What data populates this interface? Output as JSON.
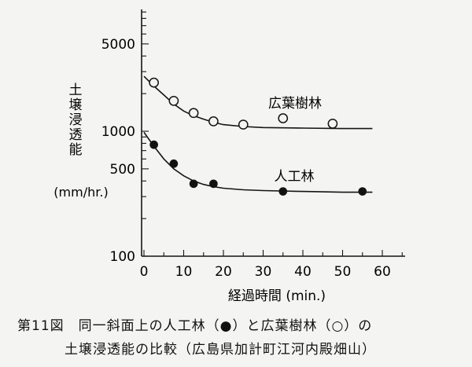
{
  "chart_data": {
    "type": "scatter",
    "xlabel": "経過時間 (min.)",
    "ylabel_lines": [
      "土",
      "壌",
      "浸",
      "透",
      "能"
    ],
    "ylabel_unit": "(mm/hr.)",
    "y_scale": "log",
    "xlim": [
      0,
      60
    ],
    "ylim": [
      100,
      10000
    ],
    "x_ticks": [
      "0",
      "10",
      "20",
      "30",
      "40",
      "50",
      "60"
    ],
    "x_tick_values": [
      0,
      10,
      20,
      30,
      40,
      50,
      60
    ],
    "y_ticks": [
      "100",
      "500",
      "1000",
      "5000"
    ],
    "y_tick_values": [
      100,
      500,
      1000,
      5000
    ],
    "grid": false,
    "series": [
      {
        "name": "広葉樹林",
        "marker": "open-circle",
        "points": [
          {
            "x": 2.5,
            "y": 2450
          },
          {
            "x": 7.5,
            "y": 1750
          },
          {
            "x": 12.5,
            "y": 1400
          },
          {
            "x": 17.5,
            "y": 1200
          },
          {
            "x": 25,
            "y": 1130
          },
          {
            "x": 35,
            "y": 1270
          },
          {
            "x": 47.5,
            "y": 1150
          }
        ],
        "curve": [
          {
            "x": 0,
            "y": 2750
          },
          {
            "x": 2.5,
            "y": 2300
          },
          {
            "x": 5,
            "y": 1950
          },
          {
            "x": 7.5,
            "y": 1650
          },
          {
            "x": 10,
            "y": 1450
          },
          {
            "x": 12.5,
            "y": 1330
          },
          {
            "x": 15,
            "y": 1250
          },
          {
            "x": 17.5,
            "y": 1180
          },
          {
            "x": 20,
            "y": 1130
          },
          {
            "x": 25,
            "y": 1090
          },
          {
            "x": 30,
            "y": 1070
          },
          {
            "x": 40,
            "y": 1060
          },
          {
            "x": 50,
            "y": 1050
          },
          {
            "x": 57.5,
            "y": 1050
          }
        ]
      },
      {
        "name": "人工林",
        "marker": "filled-circle",
        "points": [
          {
            "x": 2.5,
            "y": 780
          },
          {
            "x": 7.5,
            "y": 550
          },
          {
            "x": 12.5,
            "y": 380
          },
          {
            "x": 17.5,
            "y": 380
          },
          {
            "x": 35,
            "y": 330
          },
          {
            "x": 55,
            "y": 330
          }
        ],
        "curve": [
          {
            "x": 0,
            "y": 980
          },
          {
            "x": 2.5,
            "y": 760
          },
          {
            "x": 5,
            "y": 600
          },
          {
            "x": 7.5,
            "y": 500
          },
          {
            "x": 10,
            "y": 440
          },
          {
            "x": 12.5,
            "y": 400
          },
          {
            "x": 15,
            "y": 375
          },
          {
            "x": 17.5,
            "y": 360
          },
          {
            "x": 20,
            "y": 350
          },
          {
            "x": 25,
            "y": 340
          },
          {
            "x": 30,
            "y": 335
          },
          {
            "x": 40,
            "y": 330
          },
          {
            "x": 50,
            "y": 325
          },
          {
            "x": 57.5,
            "y": 325
          }
        ]
      }
    ]
  },
  "caption": {
    "line1": "第11図　同一斜面上の人工林（●）と広葉樹林（○）の",
    "line2": "土壌浸透能の比較（広島県加計町江河内殿畑山）"
  }
}
